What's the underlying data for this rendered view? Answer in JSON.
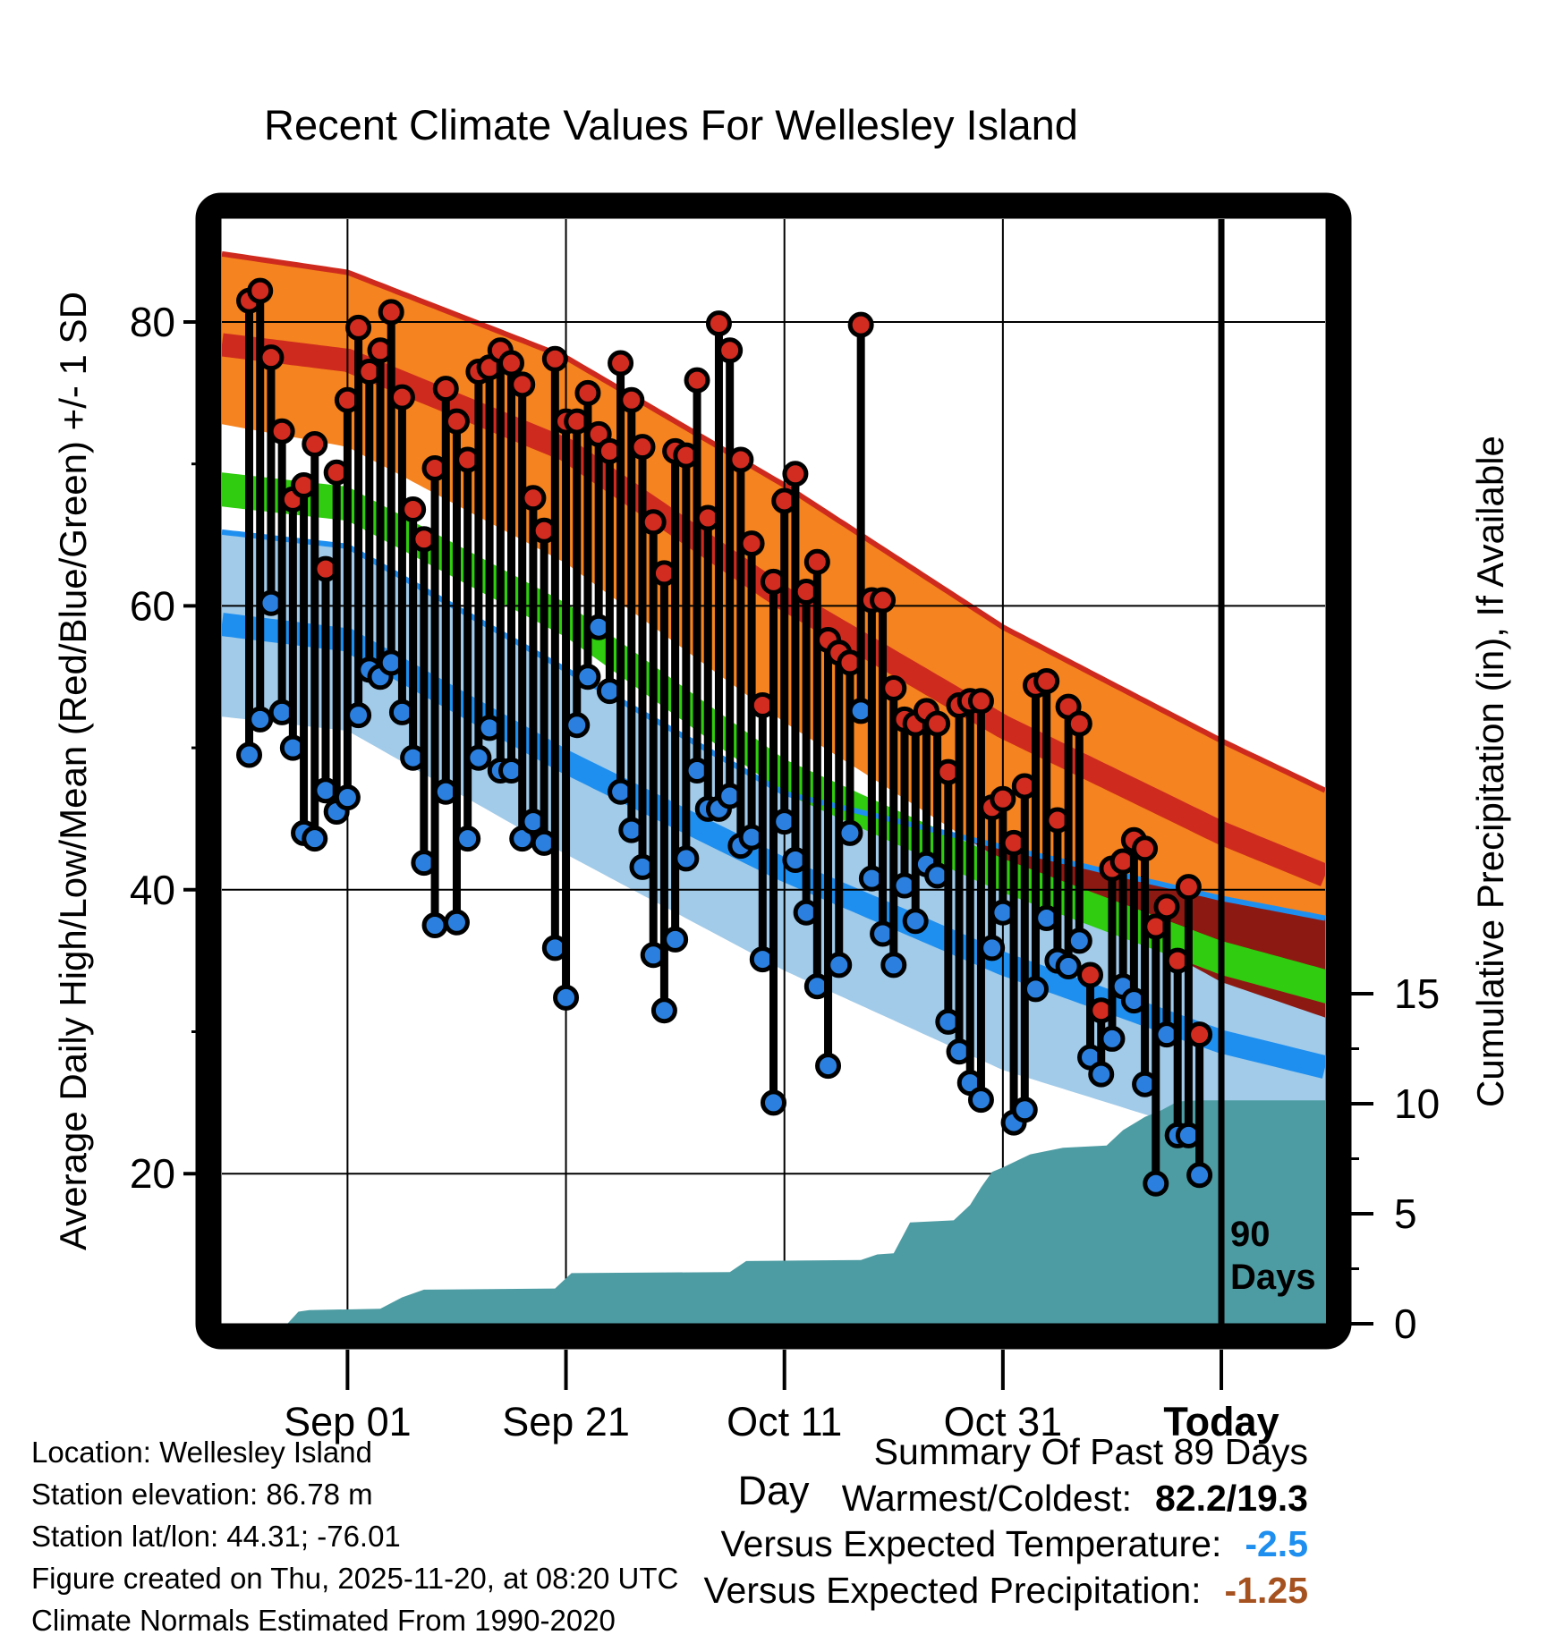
{
  "title": "Recent Climate Values For Wellesley Island",
  "axes": {
    "y_left_label": "Average Daily High/Low/Mean (Red/Blue/Green) +/- 1 SD",
    "y_right_label": "Cumulative Precipitation (in), If Available",
    "x_label": "Day",
    "y_left_ticks": [
      80,
      60,
      40,
      20
    ],
    "y_left_minor_ticks": [
      70,
      50,
      30
    ],
    "y_right_ticks": [
      15,
      10,
      5,
      0
    ],
    "y_right_minor_ticks": [
      12.5,
      7.5,
      2.5
    ],
    "x_ticks": [
      {
        "label": "Sep 01",
        "day": 9,
        "bold": false
      },
      {
        "label": "Sep 21",
        "day": 29,
        "bold": false
      },
      {
        "label": "Oct 11",
        "day": 49,
        "bold": false
      },
      {
        "label": "Oct 31",
        "day": 69,
        "bold": false
      },
      {
        "label": "Today",
        "day": 89,
        "bold": true
      }
    ]
  },
  "annotation_90days": {
    "day": 89,
    "line1": "90",
    "line2": "Days"
  },
  "footer": {
    "line1": "Location: Wellesley Island",
    "line2": "Station elevation: 86.78 m",
    "line3": "Station lat/lon: 44.31; -76.01",
    "line4": "Figure created on Thu, 2025-11-20, at 08:20 UTC",
    "line5": "Climate Normals Estimated From 1990-2020"
  },
  "summary": {
    "title": "Summary Of Past 89 Days",
    "rows": [
      {
        "label": "Warmest/Coldest:",
        "value": "82.2/19.3",
        "value_color": "#000000"
      },
      {
        "label": "Versus Expected Temperature:",
        "value": "-2.5",
        "value_color": "#1F8FEF"
      },
      {
        "label": "Versus Expected Precipitation:",
        "value": "-1.25",
        "value_color": "#A65220"
      }
    ]
  },
  "colors": {
    "high_band": "#F5831F",
    "high_mean_line": "#CE2B1E",
    "overlap_band": "#8C1A12",
    "mean_band": "#2FCC0F",
    "low_band": "#A1CBE9",
    "low_mean_line": "#1F8FEF",
    "precip_fill": "#4E9CA3",
    "high_dot": "#D22B20",
    "low_dot": "#2B80DF",
    "stem": "#000000",
    "frame": "#000000",
    "gridline": "#000000"
  },
  "chart_data": {
    "type": "line",
    "description": "Daily observed high/low temperature stems over climatological normal bands (high/low/mean +/- 1 SD), with cumulative precipitation area on secondary axis.",
    "x_unit": "day index (0 = first day of 90-day window, 89 = Today, Nov 20)",
    "temp_axis": {
      "min": 9.4,
      "max": 87.2,
      "ticks": [
        20,
        40,
        60,
        80
      ]
    },
    "precip_axis": {
      "min": 0,
      "ticks": [
        0,
        5,
        10,
        15
      ],
      "unit": "in"
    },
    "x_axis": {
      "day_min": -2.5,
      "day_max": 98.5,
      "today_day": 89
    },
    "daily": {
      "hi": [
        81.5,
        82.2,
        77.5,
        72.3,
        67.5,
        68.5,
        71.4,
        62.6,
        69.4,
        74.5,
        79.6,
        76.5,
        78.0,
        80.7,
        74.7,
        66.8,
        64.7,
        69.7,
        75.3,
        73.0,
        70.3,
        76.5,
        76.8,
        78.0,
        77.1,
        75.6,
        67.6,
        65.3,
        77.4,
        73.0,
        73.0,
        75.0,
        72.1,
        70.9,
        77.1,
        74.5,
        71.2,
        65.9,
        62.3,
        70.9,
        70.6,
        75.9,
        66.2,
        79.9,
        78.0,
        70.3,
        64.4,
        53.0,
        61.7,
        67.4,
        69.3,
        61.0,
        63.1,
        57.6,
        56.7,
        56.0,
        79.8,
        60.4,
        60.4,
        54.2,
        52.0,
        51.7,
        52.6,
        51.7,
        48.3,
        53.0,
        53.3,
        53.3,
        45.8,
        46.4,
        43.3,
        47.3,
        54.4,
        54.7,
        44.9,
        52.9,
        51.7,
        34.0,
        31.5,
        41.5,
        42.0,
        43.5,
        42.9,
        37.4,
        38.8,
        35.0,
        40.2,
        29.8
      ],
      "lo": [
        49.5,
        52.0,
        60.2,
        52.5,
        50.0,
        44.0,
        43.6,
        47.0,
        45.5,
        46.5,
        52.3,
        55.5,
        55.0,
        56.0,
        52.5,
        49.3,
        41.9,
        37.5,
        46.9,
        37.7,
        43.6,
        49.3,
        51.4,
        48.4,
        48.4,
        43.6,
        44.8,
        43.3,
        35.9,
        32.4,
        51.6,
        55.0,
        58.5,
        54.0,
        46.9,
        44.2,
        41.6,
        35.4,
        31.5,
        36.5,
        42.2,
        48.4,
        45.7,
        45.7,
        46.6,
        43.1,
        43.7,
        35.1,
        25.0,
        44.8,
        42.1,
        38.4,
        33.2,
        27.6,
        34.7,
        44.0,
        52.6,
        40.8,
        36.9,
        34.7,
        40.3,
        37.8,
        41.8,
        41.0,
        30.7,
        28.6,
        26.4,
        25.2,
        35.9,
        38.4,
        23.6,
        24.5,
        33.0,
        38.0,
        35.0,
        34.6,
        36.4,
        28.2,
        27.0,
        29.5,
        33.2,
        32.2,
        26.3,
        19.3,
        29.8,
        22.7,
        22.7,
        19.9
      ]
    },
    "normals": {
      "days": [
        -2.5,
        9,
        29,
        49,
        69,
        89,
        98.5
      ],
      "high_plus_sd": [
        84.8,
        83.5,
        77.5,
        68.5,
        58.5,
        50.5,
        47.0
      ],
      "high_mean": [
        78.4,
        77.3,
        71.0,
        60.5,
        51.5,
        44.0,
        41.0
      ],
      "high_minus_sd": [
        72.8,
        71.2,
        63.0,
        51.8,
        42.0,
        33.5,
        31.0
      ],
      "mean": [
        68.2,
        67.2,
        59.0,
        48.0,
        41.0,
        35.2,
        33.2
      ],
      "low_plus_sd": [
        65.2,
        64.2,
        55.5,
        46.8,
        43.0,
        39.4,
        38.0
      ],
      "low_mean": [
        58.7,
        57.6,
        49.0,
        41.4,
        34.8,
        29.3,
        27.5
      ],
      "low_minus_sd": [
        52.2,
        51.2,
        42.5,
        34.3,
        27.3,
        22.5,
        21.0
      ],
      "mean_band_halfwidth": 1.2
    },
    "precip_cumulative": {
      "days": [
        3.5,
        4.5,
        5.5,
        12,
        14,
        16,
        28,
        29.5,
        44,
        45.5,
        56,
        57.5,
        59,
        60.5,
        64.5,
        66,
        67,
        68,
        69,
        71.5,
        74.5,
        78.5,
        80,
        82,
        83.5,
        85,
        87,
        98.5
      ],
      "inches": [
        0,
        0.55,
        0.62,
        0.68,
        1.2,
        1.55,
        1.6,
        2.3,
        2.35,
        2.85,
        2.9,
        3.15,
        3.2,
        4.6,
        4.7,
        5.4,
        6.2,
        6.9,
        7.1,
        7.7,
        8.0,
        8.1,
        8.8,
        9.4,
        9.7,
        10.1,
        10.15,
        10.15
      ]
    }
  }
}
